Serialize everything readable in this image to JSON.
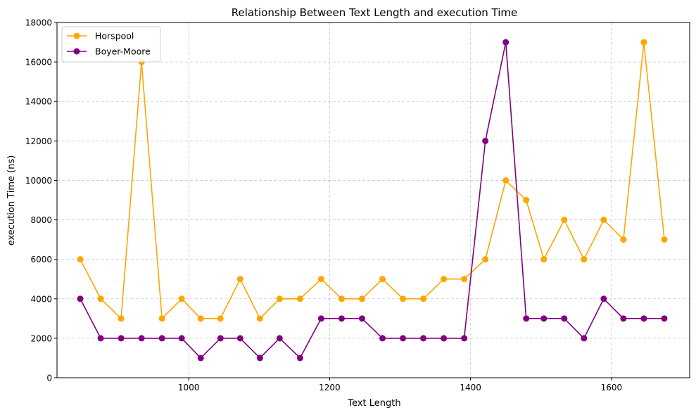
{
  "chart_data": {
    "type": "line",
    "title": "Relationship Between Text Length and execution Time",
    "xlabel": "Text Length",
    "ylabel": "execution Time (ns)",
    "xlim": [
      813,
      1711
    ],
    "ylim": [
      0,
      18000
    ],
    "x_ticks": [
      1000,
      1200,
      1400,
      1600
    ],
    "y_ticks": [
      0,
      2000,
      4000,
      6000,
      8000,
      10000,
      12000,
      14000,
      16000,
      18000
    ],
    "grid": true,
    "legend_position": "top-left",
    "x": [
      846,
      875,
      904,
      933,
      962,
      990,
      1017,
      1045,
      1073,
      1101,
      1129,
      1158,
      1188,
      1217,
      1246,
      1275,
      1304,
      1333,
      1362,
      1391,
      1421,
      1450,
      1479,
      1504,
      1533,
      1561,
      1589,
      1617,
      1646,
      1675
    ],
    "series": [
      {
        "name": "Horspool",
        "color": "#FFA500",
        "values": [
          6000,
          4000,
          3000,
          16000,
          3000,
          4000,
          3000,
          3000,
          5000,
          3000,
          4000,
          4000,
          5000,
          4000,
          4000,
          5000,
          4000,
          4000,
          5000,
          5000,
          6000,
          10000,
          9000,
          6000,
          8000,
          6000,
          8000,
          7000,
          17000,
          7000
        ]
      },
      {
        "name": "Boyer-Moore",
        "color": "#800080",
        "values": [
          4000,
          2000,
          2000,
          2000,
          2000,
          2000,
          1000,
          2000,
          2000,
          1000,
          2000,
          1000,
          3000,
          3000,
          3000,
          2000,
          2000,
          2000,
          2000,
          2000,
          12000,
          17000,
          3000,
          3000,
          3000,
          2000,
          4000,
          3000,
          3000,
          3000
        ]
      }
    ]
  }
}
